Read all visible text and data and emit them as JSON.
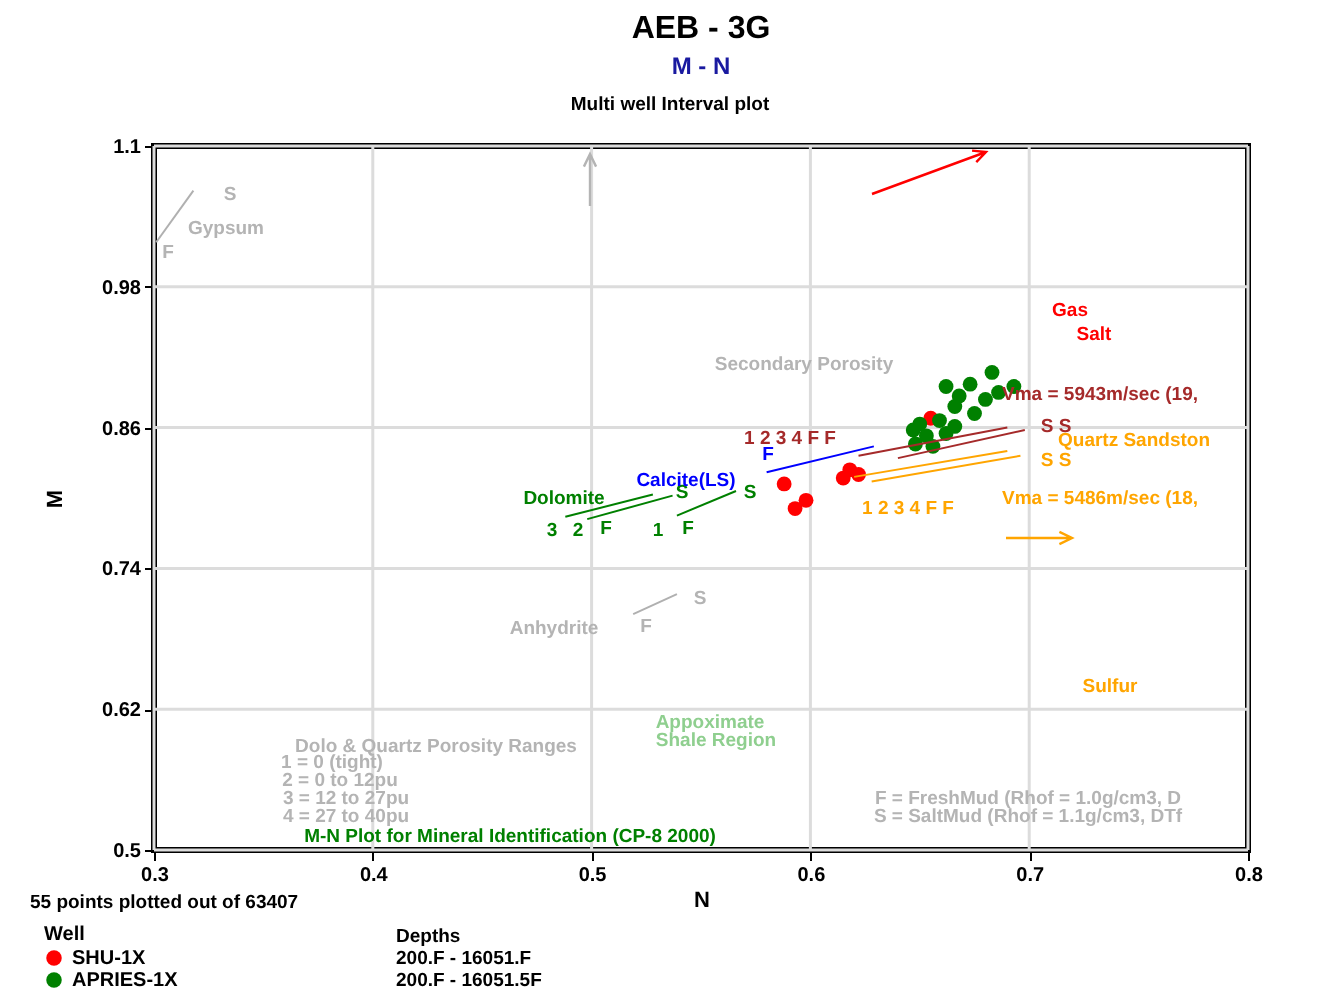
{
  "chart_data": {
    "type": "scatter",
    "title": "AEB - 3G",
    "subtitle": "M - N",
    "xlabel": "N",
    "ylabel": "M",
    "legend_title": "Well",
    "xlim": [
      0.3,
      0.8
    ],
    "xticks": [
      0.3,
      0.4,
      0.5,
      0.6,
      0.7,
      0.8
    ],
    "ylim": [
      0.5,
      1.1
    ],
    "yticks": [
      0.5,
      0.62,
      0.74,
      0.86,
      0.98,
      1.1
    ],
    "grid": true,
    "legend": "bottom left",
    "marker": "circle",
    "series": [
      {
        "name": "SHU-1X",
        "color": "#ff0000",
        "x": [
          0.588,
          0.598,
          0.593,
          0.615,
          0.618,
          0.655,
          0.622
        ],
        "values": [
          0.812,
          0.798,
          0.791,
          0.817,
          0.824,
          0.868,
          0.82
        ]
      },
      {
        "name": "APRIES-1X",
        "color": "#008000",
        "x": [
          0.683,
          0.662,
          0.673,
          0.693,
          0.668,
          0.68,
          0.666,
          0.675,
          0.659,
          0.65,
          0.647,
          0.653,
          0.662,
          0.656,
          0.666,
          0.648,
          0.686
        ],
        "values": [
          0.907,
          0.895,
          0.897,
          0.895,
          0.887,
          0.884,
          0.878,
          0.872,
          0.866,
          0.863,
          0.858,
          0.853,
          0.855,
          0.844,
          0.861,
          0.846,
          0.89
        ]
      },
      {
        "type": "line",
        "marker": "none",
        "color": "#0000ff",
        "x": [
          0.58,
          0.629
        ],
        "values": [
          0.822,
          0.844
        ]
      },
      {
        "type": "line",
        "marker": "none",
        "color": "#008000",
        "x": [
          0.539,
          0.566
        ],
        "values": [
          0.785,
          0.806
        ]
      },
      {
        "type": "line",
        "marker": "none",
        "color": "#008000",
        "x": [
          0.498,
          0.537
        ],
        "values": [
          0.782,
          0.802
        ]
      },
      {
        "type": "line",
        "marker": "none",
        "color": "#008000",
        "x": [
          0.488,
          0.528
        ],
        "values": [
          0.784,
          0.803
        ]
      },
      {
        "type": "line",
        "marker": "none",
        "color": "#b0b0b0",
        "x": [
          0.301,
          0.318
        ],
        "values": [
          1.018,
          1.062
        ]
      },
      {
        "type": "line",
        "marker": "none",
        "color": "#b0b0b0",
        "x": [
          0.519,
          0.539
        ],
        "values": [
          0.701,
          0.718
        ]
      },
      {
        "type": "line",
        "marker": "none",
        "color": "#ffa500",
        "x": [
          0.62,
          0.69
        ],
        "values": [
          0.818,
          0.84
        ]
      },
      {
        "type": "line",
        "marker": "none",
        "color": "#ffa500",
        "x": [
          0.628,
          0.696
        ],
        "values": [
          0.814,
          0.836
        ]
      },
      {
        "type": "line",
        "marker": "none",
        "color": "#a52a2a",
        "x": [
          0.622,
          0.69
        ],
        "values": [
          0.836,
          0.86
        ]
      },
      {
        "type": "line",
        "marker": "none",
        "color": "#a52a2a",
        "x": [
          0.64,
          0.698
        ],
        "values": [
          0.834,
          0.858
        ]
      }
    ],
    "annotations": [
      "Gypsum",
      "S",
      "F",
      "Secondary Porosity",
      "Dolomite",
      "S",
      "S",
      "3",
      "2",
      "F",
      "1",
      "F",
      "Calcite(LS)",
      "F",
      "Anhydrite",
      "S",
      "F",
      "Appoximate",
      "Shale Region",
      "Dolo & Quartz Porosity Ranges",
      "1 = 0 (tight)",
      "2 = 0 to 12pu",
      "3 = 12 to 27pu",
      "4 = 27 to 40pu",
      "M-N Plot for Mineral Identification (CP-8 2000)",
      "F = FreshMud (Rhof = 1.0g/cm3, D",
      "S = SaltMud (Rhof = 1.1g/cm3, DTf",
      "Sulfur",
      "Gas",
      "Salt",
      "Vma = 5943m/sec (19,",
      "Quartz Sandston",
      "Vma = 5486m/sec (18,",
      "1 2 3 4 F F",
      "S S",
      "1 2 3 4 F F",
      "S S",
      "Multi well Interval plot",
      "55 points plotted out of 63407",
      "Depths",
      "200.F - 16051.F",
      "200.F - 16051.5F"
    ]
  }
}
